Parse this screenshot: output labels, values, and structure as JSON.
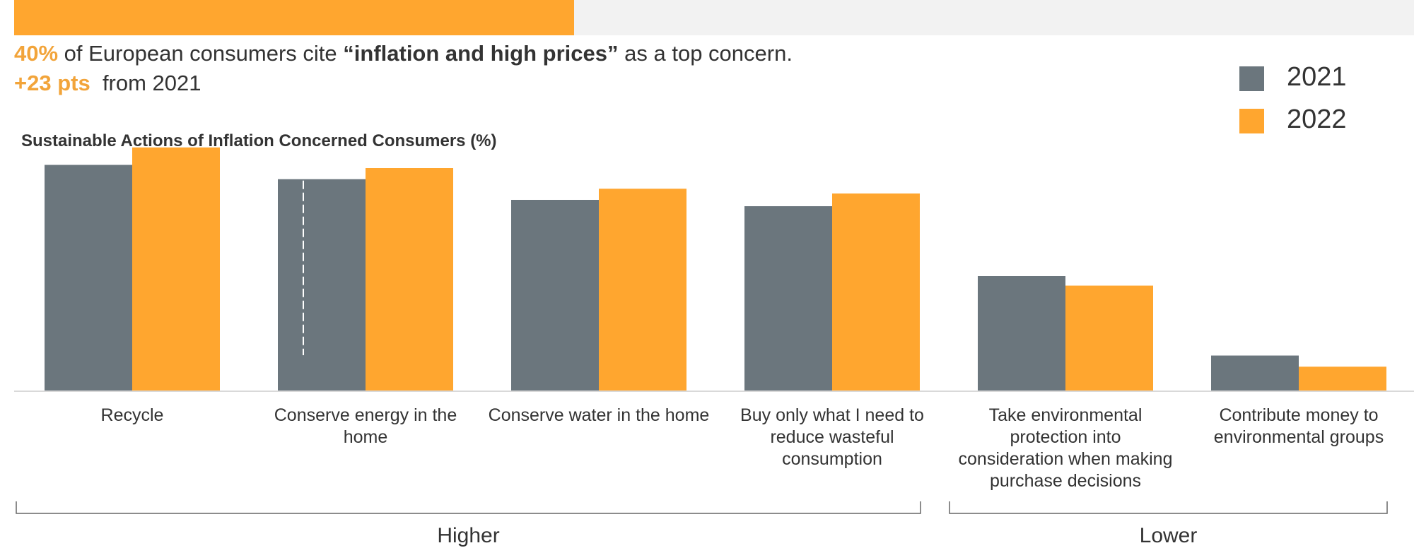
{
  "header": {
    "stat_value": "40%",
    "stat_text_1": " of European consumers cite ",
    "stat_quote": "“inflation and high prices”",
    "stat_text_2": " as a top concern.",
    "change_value": "+23 pts",
    "change_text": "from 2021",
    "progress_fraction": 0.4
  },
  "colors": {
    "series_2021": "#6b767d",
    "series_2022": "#ffa62f",
    "accent_text": "#f2a43a",
    "progress_track": "#f2f2f2"
  },
  "chart_data": {
    "type": "bar",
    "title": "Sustainable Actions of Inflation Concerned Consumers (%)",
    "categories": [
      [
        "Recycle"
      ],
      [
        "Conserve energy in the",
        "home"
      ],
      [
        "Conserve water in the home"
      ],
      [
        "Buy only what I need to",
        "reduce wasteful",
        "consumption"
      ],
      [
        "Take environmental",
        "protection into",
        "consideration when making",
        "purchase decisions"
      ],
      [
        "Contribute money to",
        "environmental groups"
      ]
    ],
    "series": [
      {
        "name": "2021",
        "values": [
          71,
          66.5,
          60,
          58,
          36,
          11
        ]
      },
      {
        "name": "2022",
        "values": [
          76.5,
          70,
          63.5,
          62,
          33,
          7.5
        ]
      }
    ],
    "ylim": [
      0,
      80
    ],
    "grid": false,
    "legend": "top-right",
    "groups": [
      {
        "label": "Higher",
        "first": 0,
        "last": 3
      },
      {
        "label": "Lower",
        "first": 4,
        "last": 5
      }
    ]
  }
}
